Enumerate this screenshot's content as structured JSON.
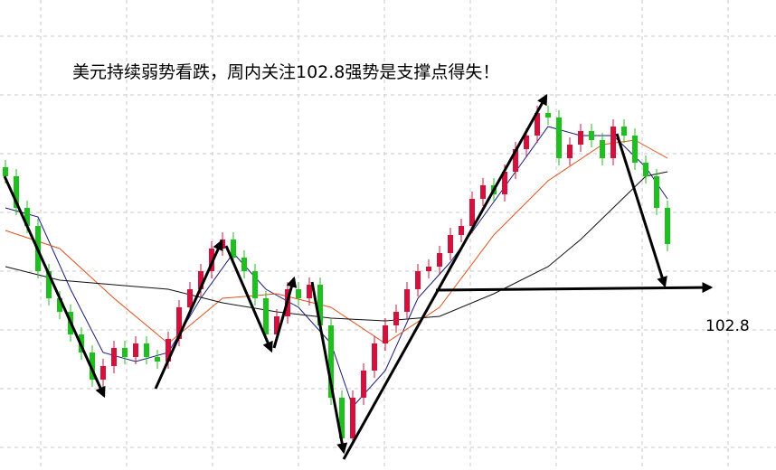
{
  "chart_data": {
    "type": "candlestick",
    "title": "美元持续弱势看跌，周内关注102.8强势是支撑点得失！",
    "support": 102.8,
    "ylim": [
      100.78,
      105.98
    ],
    "grid": true,
    "up_color": "#d4103c",
    "down_color": "#1fbf1f",
    "open": [
      104.13,
      104.03,
      103.68,
      103.48,
      102.98,
      102.68,
      102.53,
      102.28,
      102.08,
      101.78,
      101.93,
      102.13,
      102.03,
      102.18,
      102.03,
      101.98,
      102.23,
      102.58,
      102.78,
      102.98,
      103.23,
      103.33,
      103.13,
      102.98,
      102.68,
      102.28,
      102.48,
      102.78,
      102.68,
      102.83,
      102.38,
      101.58,
      101.13,
      101.58,
      101.88,
      102.18,
      102.38,
      102.53,
      102.78,
      102.98,
      103.03,
      103.18,
      103.38,
      103.48,
      103.78,
      103.93,
      103.83,
      104.08,
      104.33,
      104.48,
      104.73,
      104.68,
      104.23,
      104.38,
      104.53,
      104.43,
      104.23,
      104.58,
      104.48,
      104.18,
      104.03,
      103.68
    ],
    "high": [
      104.21,
      104.11,
      103.76,
      103.56,
      103.06,
      102.76,
      102.61,
      102.36,
      102.16,
      102.01,
      102.21,
      102.21,
      102.26,
      102.26,
      102.11,
      102.31,
      102.66,
      102.86,
      103.06,
      103.31,
      103.41,
      103.41,
      103.21,
      103.06,
      102.76,
      102.56,
      102.86,
      102.86,
      102.91,
      102.91,
      102.46,
      101.66,
      101.66,
      101.96,
      102.26,
      102.46,
      102.61,
      102.86,
      103.06,
      103.11,
      103.26,
      103.46,
      103.56,
      103.86,
      104.01,
      104.01,
      104.16,
      104.41,
      104.56,
      104.81,
      104.81,
      104.76,
      104.46,
      104.61,
      104.61,
      104.51,
      104.66,
      104.66,
      104.56,
      104.26,
      104.11,
      103.76
    ],
    "low": [
      103.95,
      103.6,
      103.4,
      102.9,
      102.6,
      102.45,
      102.2,
      102.0,
      101.7,
      101.7,
      101.85,
      101.95,
      101.95,
      101.95,
      101.9,
      101.9,
      102.15,
      102.5,
      102.7,
      102.9,
      103.15,
      103.05,
      102.9,
      102.6,
      102.2,
      102.2,
      102.4,
      102.6,
      102.6,
      102.3,
      101.5,
      101.05,
      101.05,
      101.5,
      101.8,
      102.1,
      102.3,
      102.45,
      102.7,
      102.9,
      102.95,
      103.1,
      103.3,
      103.4,
      103.7,
      103.75,
      103.75,
      104.0,
      104.25,
      104.4,
      104.6,
      104.15,
      104.15,
      104.3,
      104.35,
      104.15,
      104.15,
      104.4,
      104.1,
      103.95,
      103.6,
      103.2
    ],
    "close": [
      104.03,
      103.68,
      103.48,
      102.98,
      102.68,
      102.53,
      102.28,
      102.08,
      101.78,
      101.93,
      102.13,
      102.03,
      102.18,
      102.03,
      101.98,
      102.23,
      102.58,
      102.78,
      102.98,
      103.23,
      103.33,
      103.13,
      102.98,
      102.68,
      102.28,
      102.48,
      102.78,
      102.68,
      102.83,
      102.38,
      101.58,
      101.13,
      101.58,
      101.88,
      102.18,
      102.38,
      102.53,
      102.78,
      102.98,
      103.03,
      103.18,
      103.38,
      103.48,
      103.78,
      103.93,
      103.83,
      104.08,
      104.33,
      104.48,
      104.73,
      104.68,
      104.23,
      104.38,
      104.53,
      104.43,
      104.23,
      104.58,
      104.48,
      104.18,
      104.03,
      103.68,
      103.28
    ],
    "lines": [
      {
        "color": "#1a1a7a",
        "x": [
          0,
          3,
          6,
          9,
          12,
          15,
          18,
          21,
          24,
          27,
          30,
          32,
          35,
          38,
          41,
          44,
          47,
          50,
          53,
          56,
          59,
          61
        ],
        "values": [
          103.68,
          103.58,
          102.78,
          102.08,
          101.98,
          102.08,
          102.68,
          103.18,
          102.78,
          102.58,
          102.18,
          101.48,
          101.88,
          102.68,
          103.08,
          103.58,
          104.08,
          104.58,
          104.48,
          104.48,
          104.13,
          103.78
        ]
      },
      {
        "color": "#e0501a",
        "x": [
          0,
          5,
          10,
          15,
          20,
          25,
          30,
          35,
          40,
          45,
          50,
          55,
          58,
          61
        ],
        "values": [
          103.43,
          103.23,
          102.68,
          102.18,
          102.68,
          102.73,
          102.58,
          102.18,
          102.58,
          103.38,
          103.98,
          104.38,
          104.43,
          104.23
        ]
      },
      {
        "color": "#111111",
        "x": [
          0,
          5,
          10,
          15,
          20,
          25,
          30,
          35,
          40,
          45,
          50,
          53,
          56,
          59,
          61
        ],
        "values": [
          103.03,
          102.88,
          102.83,
          102.78,
          102.63,
          102.53,
          102.46,
          102.43,
          102.48,
          102.73,
          103.03,
          103.33,
          103.68,
          104.03,
          104.08
        ]
      }
    ]
  }
}
